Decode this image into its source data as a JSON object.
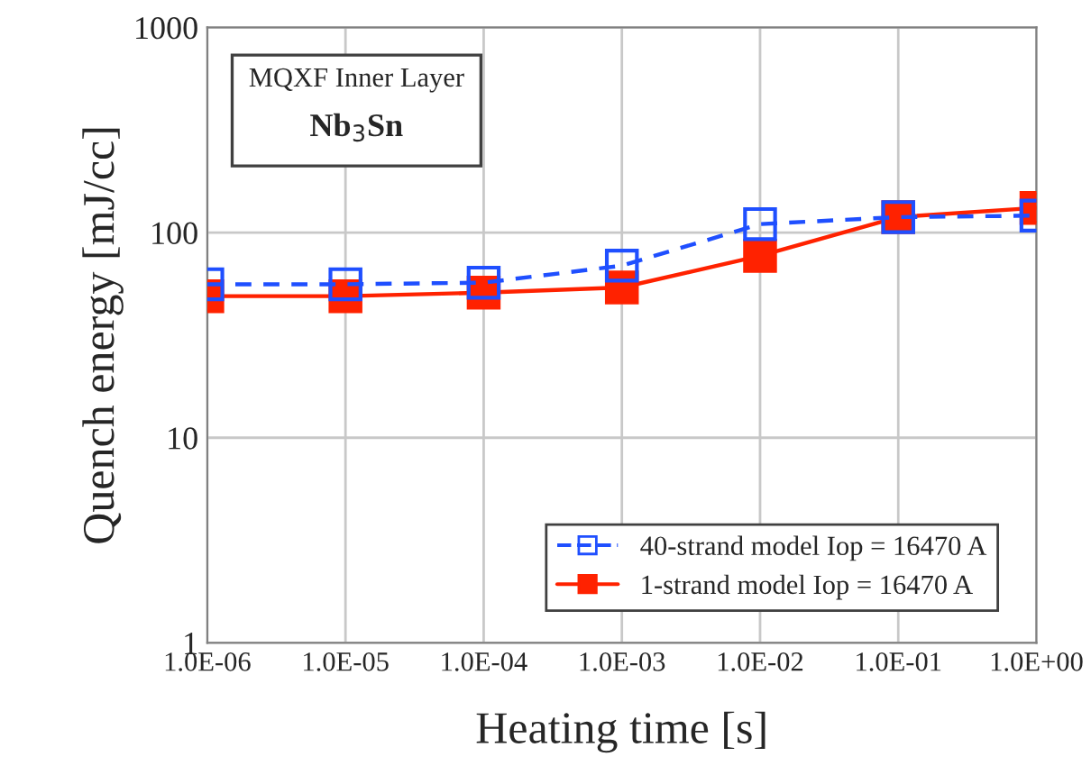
{
  "chart_data": {
    "type": "line",
    "xlabel": "Heating time [s]",
    "ylabel": "Quench energy [mJ/cc]",
    "annotations": [
      "MQXF Inner Layer",
      "Nb$_{3}$Sn"
    ],
    "x": [
      1e-06,
      1e-05,
      0.0001,
      0.001,
      0.01,
      0.1,
      1
    ],
    "series": [
      {
        "name": "40-strand model Iop = 16470 A",
        "color": "#1f4fff",
        "values": [
          56,
          56,
          57,
          69,
          110,
          119,
          121
        ],
        "marker": "square",
        "line_style": "dashed"
      },
      {
        "name": "1-strand model Iop = 16470 A",
        "color": "#ff2200",
        "values": [
          49,
          49,
          51,
          54,
          77,
          119,
          132
        ],
        "marker": "square",
        "line_style": "solid"
      }
    ],
    "log": "xy",
    "xlim": [
      1e-06,
      1
    ],
    "ylim": [
      1,
      1000
    ],
    "xticks": [
      {
        "value": 1e-06,
        "label": "1.0E-06"
      },
      {
        "value": 1e-05,
        "label": "1.0E-05"
      },
      {
        "value": 0.0001,
        "label": "1.0E-04"
      },
      {
        "value": 0.001,
        "label": "1.0E-03"
      },
      {
        "value": 0.01,
        "label": "1.0E-02"
      },
      {
        "value": 0.1,
        "label": "1.0E-01"
      },
      {
        "value": 1,
        "label": "1.0E+00"
      }
    ],
    "yticks": [
      1,
      10,
      100,
      1000
    ],
    "grid": true,
    "legend": "bottom right"
  }
}
